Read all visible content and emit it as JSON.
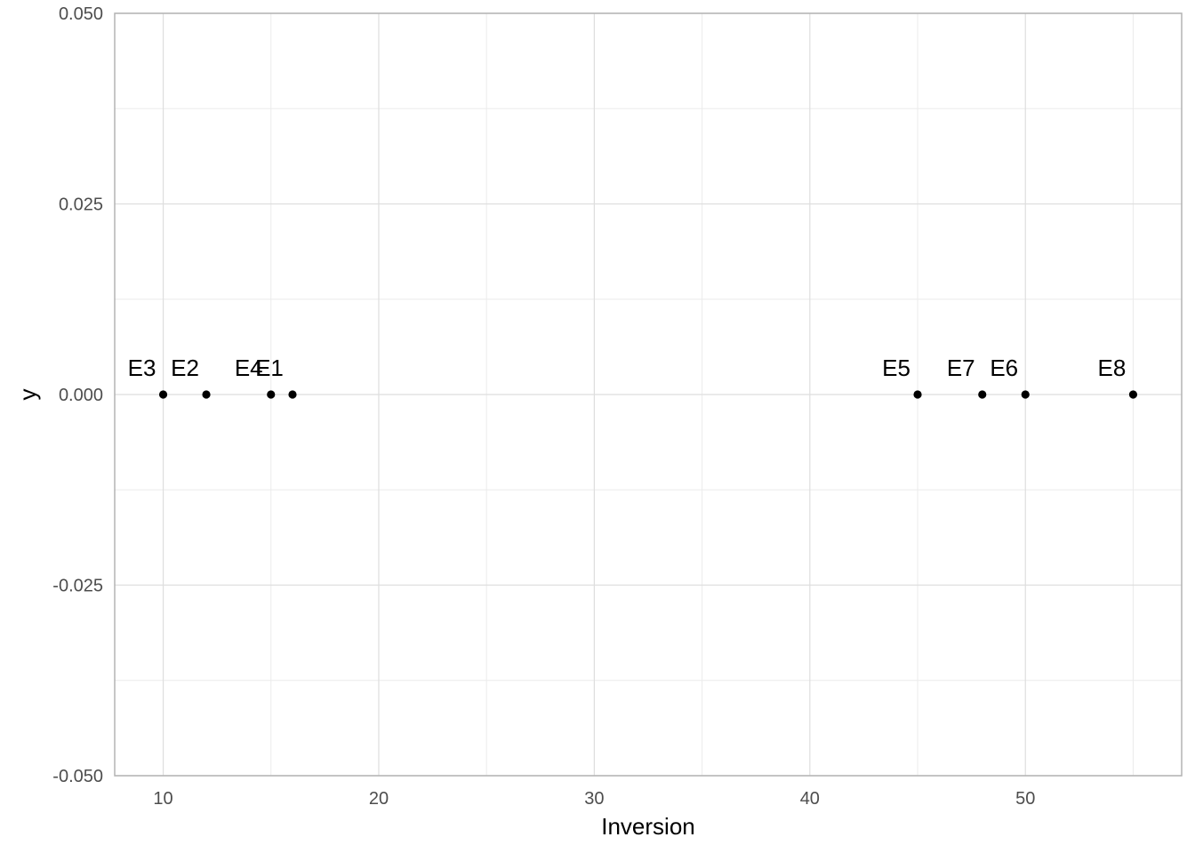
{
  "chart_data": {
    "type": "scatter",
    "title": "",
    "xlabel": "Inversion",
    "ylabel": "y",
    "xlim": [
      7.75,
      57.25
    ],
    "ylim": [
      -0.05,
      0.05
    ],
    "x_ticks": [
      10,
      20,
      30,
      40,
      50
    ],
    "x_minor_ticks": [
      15,
      25,
      35,
      45,
      55
    ],
    "y_ticks": [
      -0.05,
      -0.025,
      0,
      0.025,
      0.05
    ],
    "y_tick_labels": [
      "-0.050",
      "-0.025",
      "0.000",
      "0.025",
      "0.050"
    ],
    "y_minor_ticks": [
      -0.0375,
      -0.0125,
      0.0125,
      0.0375
    ],
    "grid": true,
    "point_color": "#000000",
    "points": [
      {
        "label": "E3",
        "x": 10,
        "y": 0
      },
      {
        "label": "E2",
        "x": 12,
        "y": 0
      },
      {
        "label": "E4",
        "x": 15,
        "y": 0
      },
      {
        "label": "E1",
        "x": 16,
        "y": 0
      },
      {
        "label": "E5",
        "x": 45,
        "y": 0
      },
      {
        "label": "E7",
        "x": 48,
        "y": 0
      },
      {
        "label": "E6",
        "x": 50,
        "y": 0
      },
      {
        "label": "E8",
        "x": 55,
        "y": 0
      }
    ]
  }
}
